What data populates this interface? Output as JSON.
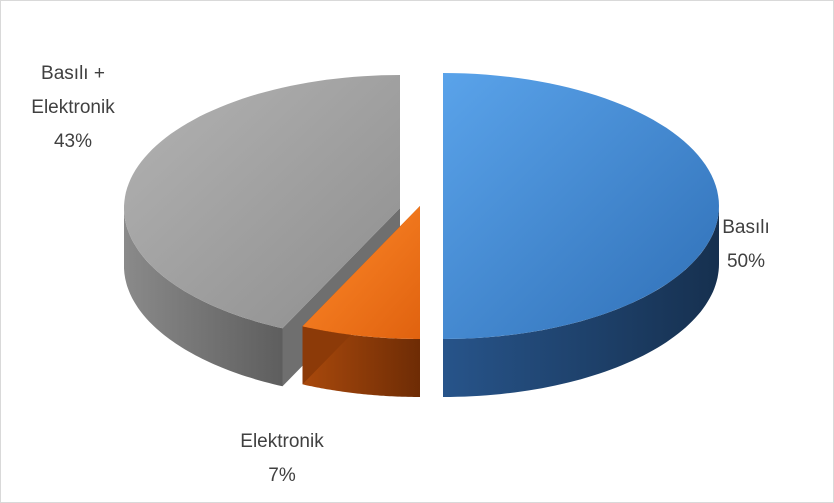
{
  "chart_data": {
    "type": "pie",
    "style": "3d-exploded",
    "title": "",
    "legend": "none",
    "slices": [
      {
        "label": "Basılı",
        "label_lines": [
          "Basılı",
          "50%"
        ],
        "value": 50,
        "color": "#3f86d0"
      },
      {
        "label": "Elektronik",
        "label_lines": [
          "Elektronik",
          "7%"
        ],
        "value": 7,
        "color": "#e8711f"
      },
      {
        "label": "Basılı + Elektronik",
        "label_lines": [
          "Basılı +",
          "Elektronik",
          "43%"
        ],
        "value": 43,
        "color": "#9c9c9c"
      }
    ]
  }
}
